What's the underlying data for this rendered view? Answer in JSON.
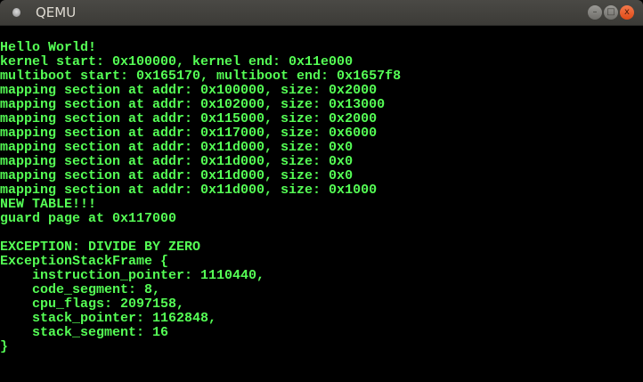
{
  "window": {
    "title": "QEMU",
    "minimize": "–",
    "maximize": "□",
    "close": "x"
  },
  "terminal": {
    "text_color": "#55ff55",
    "background": "#000000",
    "lines": [
      "",
      "Hello World!",
      "kernel start: 0x100000, kernel end: 0x11e000",
      "multiboot start: 0x165170, multiboot end: 0x1657f8",
      "mapping section at addr: 0x100000, size: 0x2000",
      "mapping section at addr: 0x102000, size: 0x13000",
      "mapping section at addr: 0x115000, size: 0x2000",
      "mapping section at addr: 0x117000, size: 0x6000",
      "mapping section at addr: 0x11d000, size: 0x0",
      "mapping section at addr: 0x11d000, size: 0x0",
      "mapping section at addr: 0x11d000, size: 0x0",
      "mapping section at addr: 0x11d000, size: 0x1000",
      "NEW TABLE!!!",
      "guard page at 0x117000",
      "",
      "EXCEPTION: DIVIDE BY ZERO",
      "ExceptionStackFrame {",
      "    instruction_pointer: 1110440,",
      "    code_segment: 8,",
      "    cpu_flags: 2097158,",
      "    stack_pointer: 1162848,",
      "    stack_segment: 16",
      "}"
    ]
  }
}
